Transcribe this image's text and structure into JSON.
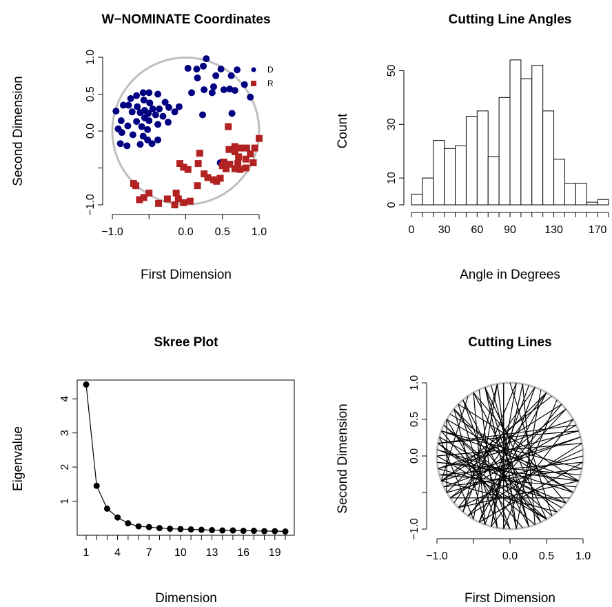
{
  "chart_data": [
    {
      "type": "scatter",
      "title": "W−NOMINATE Coordinates",
      "xlabel": "First Dimension",
      "ylabel": "Second Dimension",
      "xlim": [
        -1,
        1
      ],
      "ylim": [
        -1,
        1
      ],
      "x_ticks": [
        -1.0,
        -0.5,
        0.0,
        0.5,
        1.0
      ],
      "x_tick_labels": [
        "−1.0",
        "",
        "0.0",
        "0.5",
        "1.0"
      ],
      "y_ticks": [
        -1.0,
        -0.5,
        0.0,
        0.5,
        1.0
      ],
      "y_tick_labels": [
        "−1.0",
        "",
        "0.0",
        "0.5",
        "1.0"
      ],
      "unit_circle": true,
      "circle_color": "#bebebe",
      "legend": {
        "position": "top-right",
        "entries": [
          "D",
          "R"
        ]
      },
      "series": [
        {
          "name": "D",
          "color": "#000080",
          "marker": "circle",
          "points": [
            [
              0.28,
              0.98
            ],
            [
              0.24,
              0.88
            ],
            [
              0.03,
              0.85
            ],
            [
              0.15,
              0.84
            ],
            [
              0.48,
              0.84
            ],
            [
              0.62,
              0.75
            ],
            [
              0.7,
              0.83
            ],
            [
              0.41,
              0.75
            ],
            [
              0.8,
              0.63
            ],
            [
              0.16,
              0.72
            ],
            [
              0.38,
              0.6
            ],
            [
              0.25,
              0.56
            ],
            [
              0.52,
              0.56
            ],
            [
              0.88,
              0.46
            ],
            [
              0.6,
              0.57
            ],
            [
              0.67,
              0.55
            ],
            [
              0.08,
              0.52
            ],
            [
              0.36,
              0.52
            ],
            [
              -0.58,
              0.52
            ],
            [
              -0.5,
              0.52
            ],
            [
              -0.38,
              0.5
            ],
            [
              -0.67,
              0.48
            ],
            [
              -0.75,
              0.44
            ],
            [
              -0.57,
              0.42
            ],
            [
              -0.49,
              0.38
            ],
            [
              -0.28,
              0.39
            ],
            [
              -0.85,
              0.35
            ],
            [
              -0.78,
              0.35
            ],
            [
              -0.66,
              0.33
            ],
            [
              -0.45,
              0.3
            ],
            [
              -0.36,
              0.3
            ],
            [
              -0.23,
              0.32
            ],
            [
              -0.56,
              0.28
            ],
            [
              -0.73,
              0.26
            ],
            [
              -0.62,
              0.25
            ],
            [
              -0.51,
              0.24
            ],
            [
              -0.95,
              0.27
            ],
            [
              -0.09,
              0.33
            ],
            [
              -0.15,
              0.26
            ],
            [
              -0.41,
              0.22
            ],
            [
              -0.31,
              0.2
            ],
            [
              -0.56,
              0.18
            ],
            [
              -0.88,
              0.14
            ],
            [
              -0.67,
              0.13
            ],
            [
              -0.5,
              0.14
            ],
            [
              -0.24,
              0.12
            ],
            [
              0.23,
              0.22
            ],
            [
              0.63,
              0.24
            ],
            [
              -0.6,
              0.06
            ],
            [
              -0.38,
              0.09
            ],
            [
              -0.79,
              0.07
            ],
            [
              -0.52,
              0.02
            ],
            [
              -0.72,
              -0.05
            ],
            [
              -0.58,
              -0.07
            ],
            [
              -0.52,
              -0.12
            ],
            [
              -0.38,
              -0.12
            ],
            [
              -0.46,
              -0.17
            ],
            [
              -0.62,
              -0.18
            ],
            [
              -0.8,
              -0.2
            ],
            [
              -0.89,
              -0.17
            ],
            [
              -0.87,
              -0.02
            ],
            [
              -0.92,
              0.03
            ],
            [
              0.47,
              -0.43
            ]
          ]
        },
        {
          "name": "R",
          "color": "#b22222",
          "marker": "square",
          "points": [
            [
              0.58,
              0.06
            ],
            [
              1.0,
              -0.1
            ],
            [
              0.67,
              -0.21
            ],
            [
              0.75,
              -0.23
            ],
            [
              0.83,
              -0.23
            ],
            [
              0.94,
              -0.23
            ],
            [
              0.59,
              -0.25
            ],
            [
              0.67,
              -0.28
            ],
            [
              0.19,
              -0.3
            ],
            [
              0.88,
              -0.31
            ],
            [
              0.72,
              -0.35
            ],
            [
              0.82,
              -0.38
            ],
            [
              0.52,
              -0.42
            ],
            [
              0.6,
              -0.45
            ],
            [
              0.71,
              -0.44
            ],
            [
              0.92,
              -0.43
            ],
            [
              -0.08,
              -0.44
            ],
            [
              0.17,
              -0.44
            ],
            [
              0.5,
              -0.47
            ],
            [
              0.55,
              -0.51
            ],
            [
              0.67,
              -0.51
            ],
            [
              0.74,
              -0.52
            ],
            [
              0.82,
              -0.5
            ],
            [
              0.03,
              -0.52
            ],
            [
              -0.03,
              -0.49
            ],
            [
              0.25,
              -0.58
            ],
            [
              0.3,
              -0.63
            ],
            [
              0.47,
              -0.64
            ],
            [
              0.42,
              -0.68
            ],
            [
              0.38,
              -0.66
            ],
            [
              -0.71,
              -0.71
            ],
            [
              -0.68,
              -0.74
            ],
            [
              -0.5,
              -0.84
            ],
            [
              -0.25,
              -0.92
            ],
            [
              -0.1,
              -0.92
            ],
            [
              0.06,
              -0.95
            ],
            [
              0.16,
              -0.74
            ],
            [
              -0.13,
              -0.84
            ],
            [
              -0.03,
              -0.97
            ],
            [
              -0.15,
              -1.0
            ],
            [
              -0.37,
              -0.98
            ],
            [
              -0.57,
              -0.9
            ],
            [
              -0.63,
              -0.93
            ]
          ]
        }
      ]
    },
    {
      "type": "bar",
      "title": "Cutting Line Angles",
      "xlabel": "Angle in Degrees",
      "ylabel": "Count",
      "xlim": [
        0,
        180
      ],
      "ylim": [
        0,
        55
      ],
      "bin_width": 10,
      "bin_edges": [
        0,
        10,
        20,
        30,
        40,
        50,
        60,
        70,
        80,
        90,
        100,
        110,
        120,
        130,
        140,
        150,
        160,
        170,
        180
      ],
      "values": [
        4,
        10,
        24,
        21,
        22,
        33,
        35,
        18,
        40,
        54,
        47,
        52,
        35,
        17,
        8,
        8,
        1,
        2
      ],
      "bar_fill": "#ffffff",
      "x_ticks": [
        0,
        10,
        20,
        30,
        40,
        50,
        60,
        70,
        80,
        90,
        100,
        110,
        120,
        130,
        140,
        150,
        160,
        170,
        180
      ],
      "x_tick_labels": [
        "0",
        "30",
        "60",
        "90",
        "130",
        "170"
      ],
      "x_tick_label_values": [
        0,
        30,
        60,
        90,
        130,
        170
      ],
      "y_ticks": [
        0,
        10,
        30,
        50
      ],
      "y_tick_labels": [
        "0",
        "10",
        "30",
        "50"
      ]
    },
    {
      "type": "line",
      "title": "Skree Plot",
      "xlabel": "Dimension",
      "ylabel": "Eigenvalue",
      "xlim": [
        1,
        20
      ],
      "ylim": [
        0.1,
        4.45
      ],
      "x": [
        1,
        2,
        3,
        4,
        5,
        6,
        7,
        8,
        9,
        10,
        11,
        12,
        13,
        14,
        15,
        16,
        17,
        18,
        19,
        20
      ],
      "values": [
        4.42,
        1.45,
        0.78,
        0.52,
        0.35,
        0.26,
        0.24,
        0.21,
        0.19,
        0.18,
        0.17,
        0.16,
        0.15,
        0.14,
        0.14,
        0.13,
        0.13,
        0.12,
        0.12,
        0.11
      ],
      "x_ticks": [
        1,
        2,
        3,
        4,
        5,
        6,
        7,
        8,
        9,
        10,
        11,
        12,
        13,
        14,
        15,
        16,
        17,
        18,
        19,
        20
      ],
      "x_tick_labels": [
        "1",
        "4",
        "7",
        "10",
        "13",
        "16",
        "19"
      ],
      "x_tick_label_values": [
        1,
        4,
        7,
        10,
        13,
        16,
        19
      ],
      "y_ticks": [
        1,
        2,
        3,
        4
      ],
      "y_tick_labels": [
        "1",
        "2",
        "3",
        "4"
      ],
      "boxed": true
    },
    {
      "type": "line",
      "title": "Cutting Lines",
      "xlabel": "First Dimension",
      "ylabel": "Second Dimension",
      "xlim": [
        -1,
        1
      ],
      "ylim": [
        -1,
        1
      ],
      "x_ticks": [
        -1.0,
        -0.5,
        0.0,
        0.5,
        1.0
      ],
      "x_tick_labels": [
        "−1.0",
        "",
        "0.0",
        "0.5",
        "1.0"
      ],
      "y_ticks": [
        -1.0,
        -0.5,
        0.0,
        0.5,
        1.0
      ],
      "y_tick_labels": [
        "−1.0",
        "",
        "0.0",
        "0.5",
        "1.0"
      ],
      "unit_circle": true,
      "circle_color": "#bebebe",
      "line_color": "#000000",
      "chord_endpoint_angles_deg": [
        [
          70,
          250
        ],
        [
          80,
          290
        ],
        [
          95,
          265
        ],
        [
          100,
          230
        ],
        [
          105,
          285
        ],
        [
          110,
          300
        ],
        [
          115,
          260
        ],
        [
          120,
          320
        ],
        [
          125,
          200
        ],
        [
          130,
          270
        ],
        [
          135,
          340
        ],
        [
          140,
          250
        ],
        [
          145,
          330
        ],
        [
          150,
          210
        ],
        [
          155,
          300
        ],
        [
          160,
          350
        ],
        [
          165,
          240
        ],
        [
          170,
          20
        ],
        [
          175,
          320
        ],
        [
          180,
          10
        ],
        [
          185,
          340
        ],
        [
          190,
          30
        ],
        [
          195,
          355
        ],
        [
          200,
          45
        ],
        [
          205,
          15
        ],
        [
          210,
          60
        ],
        [
          215,
          25
        ],
        [
          220,
          70
        ],
        [
          225,
          5
        ],
        [
          230,
          85
        ],
        [
          235,
          40
        ],
        [
          240,
          100
        ],
        [
          245,
          60
        ],
        [
          250,
          120
        ],
        [
          255,
          80
        ],
        [
          260,
          135
        ],
        [
          265,
          95
        ],
        [
          270,
          150
        ],
        [
          275,
          110
        ],
        [
          280,
          160
        ],
        [
          285,
          130
        ],
        [
          290,
          170
        ],
        [
          295,
          140
        ],
        [
          300,
          180
        ],
        [
          305,
          155
        ],
        [
          310,
          200
        ],
        [
          315,
          165
        ],
        [
          320,
          190
        ],
        [
          325,
          215
        ],
        [
          330,
          175
        ],
        [
          335,
          195
        ],
        [
          340,
          225
        ],
        [
          345,
          185
        ],
        [
          350,
          205
        ],
        [
          355,
          245
        ],
        [
          0,
          210
        ],
        [
          10,
          235
        ],
        [
          20,
          190
        ],
        [
          30,
          255
        ],
        [
          40,
          215
        ],
        [
          50,
          265
        ],
        [
          60,
          225
        ],
        [
          65,
          275
        ],
        [
          75,
          245
        ],
        [
          85,
          255
        ],
        [
          90,
          305
        ],
        [
          100,
          275
        ],
        [
          110,
          285
        ],
        [
          120,
          295
        ],
        [
          140,
          310
        ],
        [
          150,
          330
        ],
        [
          160,
          340
        ],
        [
          170,
          300
        ],
        [
          45,
          235
        ],
        [
          55,
          200
        ],
        [
          25,
          170
        ],
        [
          15,
          200
        ]
      ]
    }
  ]
}
